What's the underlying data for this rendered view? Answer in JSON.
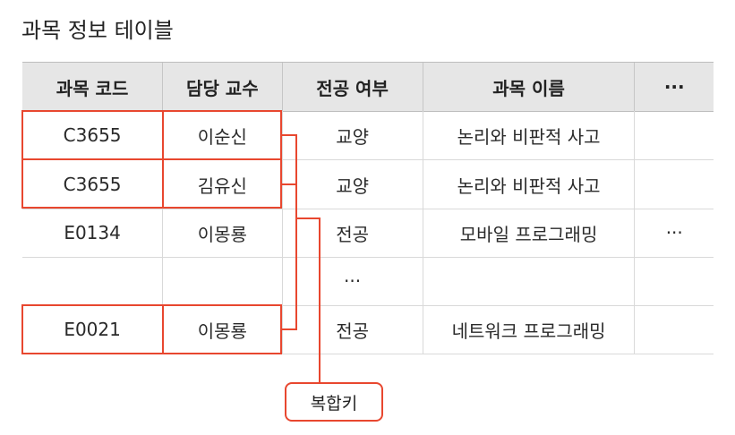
{
  "title": "과목 정보 테이블",
  "table": {
    "headers": [
      "과목 코드",
      "담당 교수",
      "전공 여부",
      "과목 이름",
      "···"
    ],
    "rows": [
      [
        "C3655",
        "이순신",
        "교양",
        "논리와 비판적 사고",
        ""
      ],
      [
        "C3655",
        "김유신",
        "교양",
        "논리와 비판적 사고",
        ""
      ],
      [
        "E0134",
        "이몽룡",
        "전공",
        "모바일 프로그래밍",
        "···"
      ],
      [
        "",
        "",
        "···",
        "",
        ""
      ],
      [
        "E0021",
        "이몽룡",
        "전공",
        "네트워크 프로그래밍",
        ""
      ]
    ]
  },
  "annotation": {
    "label": "복합키"
  },
  "colors": {
    "accent": "#e8472f",
    "header_bg": "#e6e6e6",
    "grid": "#d9d9d9"
  }
}
